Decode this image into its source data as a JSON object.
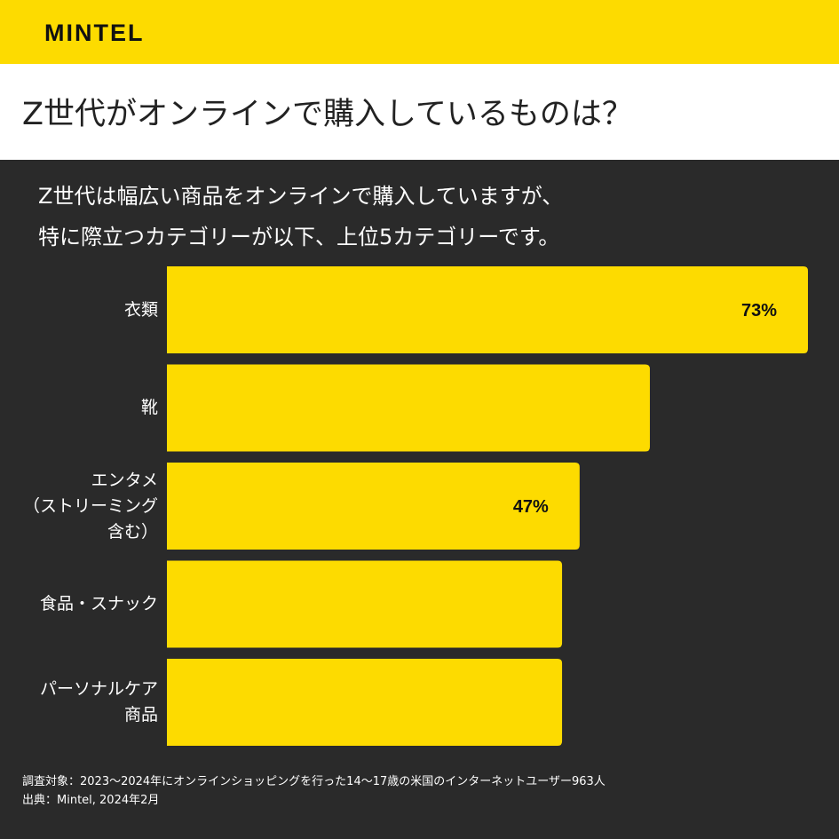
{
  "header": {
    "logo": "MINTEL"
  },
  "title": "Z世代がオンラインで購入しているものは？",
  "subtitle": [
    "Z世代は幅広い商品をオンラインで購入していますが、",
    "特に際立つカテゴリーが以下、上位5カテゴリーです。"
  ],
  "colors": {
    "accent": "#FDDB00",
    "background": "#2a2a2a"
  },
  "chart_data": {
    "type": "bar",
    "orientation": "horizontal",
    "categories": [
      [
        "衣類"
      ],
      [
        "靴"
      ],
      [
        "エンタメ",
        "（ストリーミング",
        "含む）"
      ],
      [
        "食品・スナック"
      ],
      [
        "パーソナルケア",
        "商品"
      ]
    ],
    "values": [
      73,
      55,
      47,
      45,
      45
    ],
    "data_labels": [
      "73%",
      "",
      "47%",
      "",
      ""
    ],
    "xlim": [
      0,
      73
    ],
    "grid": false
  },
  "footer": [
    "調査対象：2023〜2024年にオンラインショッピングを行った14〜17歳の米国のインターネットユーザー963人",
    "出典：Mintel, 2024年2月"
  ]
}
